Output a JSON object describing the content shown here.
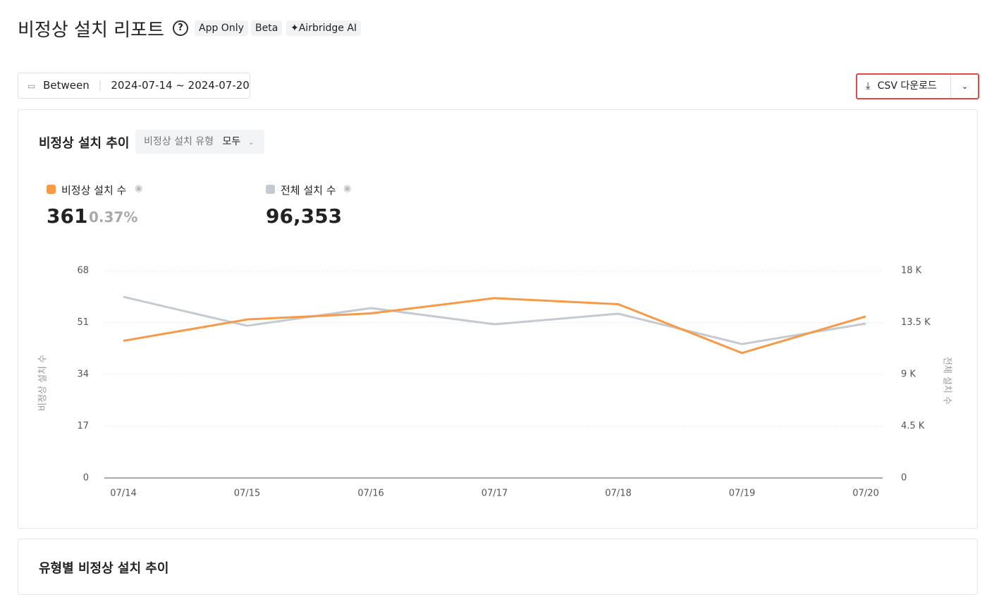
{
  "header": {
    "title": "비정상 설치 리포트",
    "badges": [
      "App Only",
      "Beta",
      "Airbridge AI"
    ]
  },
  "filter": {
    "label": "Between",
    "range": "2024-07-14 ~ 2024-07-20"
  },
  "download": {
    "label": "CSV 다운로드"
  },
  "card": {
    "title": "비정상 설치 추이",
    "type_filter": {
      "label": "비정상 설치 유형",
      "value": "모두"
    },
    "metrics": [
      {
        "name": "비정상 설치 수",
        "value": "361",
        "ratio": "0.37%"
      },
      {
        "name": "전체 설치 수",
        "value": "96,353"
      }
    ]
  },
  "chart_data": {
    "type": "line",
    "categories": [
      "07/14",
      "07/15",
      "07/16",
      "07/17",
      "07/18",
      "07/19",
      "07/20"
    ],
    "series": [
      {
        "name": "비정상 설치 수",
        "color": "#f79a48",
        "values": [
          45,
          52,
          54,
          59,
          57,
          41,
          53
        ]
      },
      {
        "name": "전체 설치 수",
        "color": "#c5c9d0",
        "axis": "y2",
        "values": [
          15730,
          13220,
          14755,
          13345,
          14265,
          11630,
          13408
        ]
      }
    ],
    "ylabel": "비정상 설치 수",
    "y2label": "전체 설치 수",
    "ylim": [
      0,
      68
    ],
    "yticks": [
      0,
      17,
      34,
      51,
      68
    ],
    "y2lim": [
      0,
      18000
    ],
    "y2ticks": [
      0,
      {
        "value": 4500,
        "label": "4.5 K"
      },
      {
        "value": 9000,
        "label": "9 K"
      },
      {
        "value": 13500,
        "label": "13.5 K"
      },
      {
        "value": 18000,
        "label": "18 K"
      }
    ],
    "grid": true
  },
  "next_card": {
    "title": "유형별 비정상 설치 추이"
  }
}
